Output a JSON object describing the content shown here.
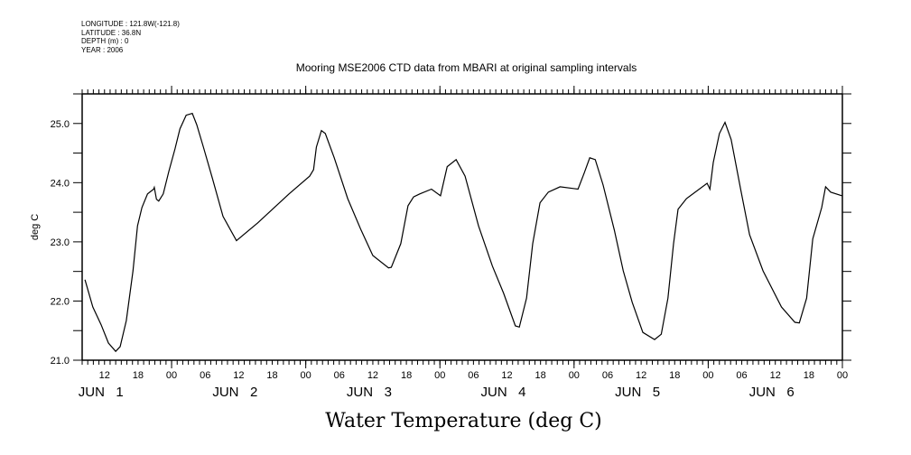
{
  "header": {
    "meta_lines": [
      "LONGITUDE : 121.8W(-121.8)",
      "LATITUDE : 36.8N",
      "DEPTH (m) : 0",
      "YEAR : 2006"
    ]
  },
  "chart_data": {
    "type": "line",
    "title": "Mooring MSE2006 CTD data from MBARI  at original sampling intervals",
    "xlabel": "Water Temperature (deg C)",
    "ylabel": "deg C",
    "x_units": "hours since JUN 1 00:00",
    "xlim": [
      8,
      144
    ],
    "ylim": [
      21.0,
      25.5
    ],
    "y_ticks": [
      21.0,
      22.0,
      23.0,
      24.0,
      25.0
    ],
    "y_tick_labels": [
      "21.0",
      "22.0",
      "23.0",
      "24.0",
      "25.0"
    ],
    "y_minor_step": 0.5,
    "x_tick_hours": [
      12,
      18,
      24,
      30,
      36,
      42,
      48,
      54,
      60,
      66,
      72,
      78,
      84,
      90,
      96,
      102,
      108,
      114,
      120,
      126,
      132,
      138,
      144
    ],
    "x_tick_labels": [
      "12",
      "18",
      "00",
      "06",
      "12",
      "18",
      "00",
      "06",
      "12",
      "18",
      "00",
      "06",
      "12",
      "18",
      "00",
      "06",
      "12",
      "18",
      "00",
      "06",
      "12",
      "18",
      "00"
    ],
    "x_minor_step_hours": 1,
    "day_labels": [
      {
        "label": "JUN   1",
        "center_hour": 12
      },
      {
        "label": "JUN   2",
        "center_hour": 36
      },
      {
        "label": "JUN   3",
        "center_hour": 60
      },
      {
        "label": "JUN   4",
        "center_hour": 84
      },
      {
        "label": "JUN   5",
        "center_hour": 108
      },
      {
        "label": "JUN   6",
        "center_hour": 132
      }
    ],
    "grid": false,
    "series": [
      {
        "name": "Water Temperature",
        "color": "#000000",
        "x": [
          8.5,
          9.9,
          11.4,
          12.7,
          14.0,
          14.8,
          15.9,
          17.1,
          17.9,
          18.7,
          19.7,
          20.8,
          20.9,
          21.3,
          21.7,
          22.5,
          23.5,
          24.6,
          25.5,
          26.6,
          27.7,
          28.5,
          29.7,
          31.3,
          33.2,
          35.6,
          39.4,
          45.0,
          48.7,
          49.4,
          49.9,
          50.8,
          51.5,
          53.1,
          55.5,
          57.9,
          60.0,
          62.8,
          63.3,
          65.0,
          66.3,
          67.3,
          68.4,
          70.5,
          72.1,
          73.3,
          74.9,
          76.5,
          78.9,
          81.4,
          83.4,
          85.5,
          86.2,
          87.5,
          88.6,
          89.9,
          91.4,
          93.5,
          96.7,
          97.8,
          98.8,
          99.8,
          101.2,
          103.2,
          104.8,
          106.4,
          108.3,
          110.4,
          111.6,
          112.8,
          113.8,
          114.6,
          116.1,
          119.8,
          120.3,
          120.9,
          122.0,
          123.0,
          124.1,
          125.8,
          127.4,
          129.8,
          133.1,
          135.5,
          136.3,
          137.6,
          138.7,
          140.3,
          141.0,
          141.9,
          143.9
        ],
        "y": [
          22.36,
          21.9,
          21.6,
          21.29,
          21.15,
          21.23,
          21.67,
          22.51,
          23.27,
          23.58,
          23.81,
          23.89,
          23.92,
          23.72,
          23.69,
          23.81,
          24.19,
          24.57,
          24.91,
          25.14,
          25.17,
          24.98,
          24.6,
          24.07,
          23.43,
          23.02,
          23.32,
          23.81,
          24.11,
          24.22,
          24.6,
          24.88,
          24.83,
          24.42,
          23.73,
          23.2,
          22.77,
          22.56,
          22.57,
          22.97,
          23.61,
          23.76,
          23.81,
          23.89,
          23.78,
          24.27,
          24.39,
          24.11,
          23.27,
          22.59,
          22.13,
          21.58,
          21.56,
          22.05,
          22.97,
          23.66,
          23.84,
          23.93,
          23.89,
          24.16,
          24.42,
          24.39,
          23.96,
          23.2,
          22.51,
          21.98,
          21.47,
          21.35,
          21.44,
          22.05,
          22.97,
          23.55,
          23.73,
          23.99,
          23.89,
          24.34,
          24.83,
          25.02,
          24.73,
          23.89,
          23.12,
          22.51,
          21.9,
          21.64,
          21.63,
          22.05,
          23.05,
          23.58,
          23.93,
          23.84,
          23.78
        ]
      }
    ]
  }
}
